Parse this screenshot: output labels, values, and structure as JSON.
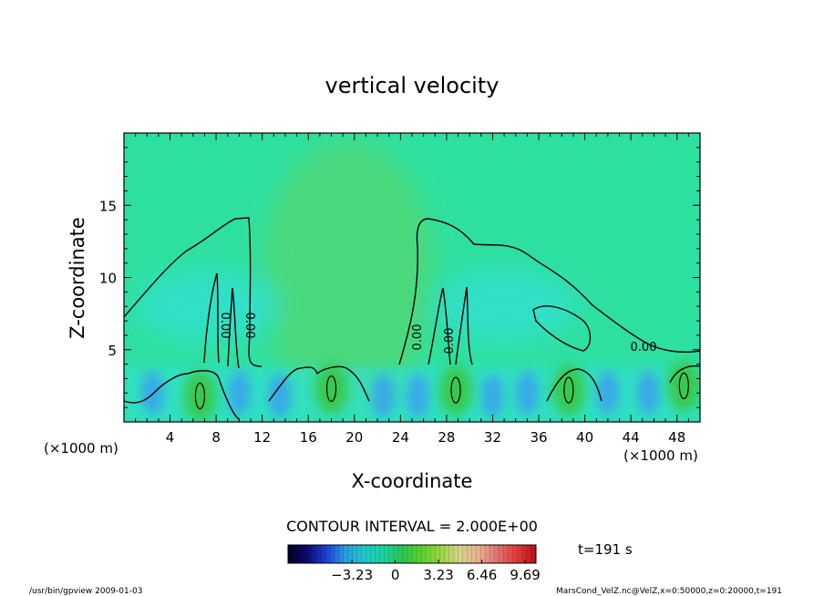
{
  "chart_data": {
    "type": "heatmap",
    "title": "vertical velocity",
    "xlabel": "X-coordinate",
    "ylabel": "Z-coordinate",
    "x_unit": "(×1000 m)",
    "xlim": [
      0,
      50
    ],
    "ylim": [
      0,
      20
    ],
    "x_ticks": [
      4,
      8,
      12,
      16,
      20,
      24,
      28,
      32,
      36,
      40,
      44,
      48
    ],
    "y_ticks": [
      5,
      10,
      15
    ],
    "contour_interval_text": "CONTOUR INTERVAL = 2.000E+00",
    "contour_labels": [
      "0.00",
      "0.00",
      "0.00",
      "0.00",
      "0.00"
    ],
    "time_label": "t=191 s",
    "colorbar": {
      "min": -8.0,
      "max": 10.5,
      "tick_labels": [
        "−3.23",
        "0",
        "3.23",
        "6.46",
        "9.69"
      ],
      "tick_values": [
        -3.23,
        0,
        3.23,
        6.46,
        9.69
      ],
      "colors": [
        "#000022",
        "#0a0a6e",
        "#1f3fd8",
        "#2a9de0",
        "#20c8c8",
        "#1ad4a0",
        "#28c850",
        "#5ccf30",
        "#9ad640",
        "#d4d48a",
        "#e8b090",
        "#e07070",
        "#e03a3a",
        "#b81414"
      ]
    },
    "updrafts": [
      {
        "x": 6.6,
        "z": 1.8,
        "w": 2.0
      },
      {
        "x": 18.0,
        "z": 2.3,
        "w": 2.0
      },
      {
        "x": 28.8,
        "z": 2.2,
        "w": 2.0
      },
      {
        "x": 38.6,
        "z": 2.2,
        "w": 2.0
      },
      {
        "x": 48.6,
        "z": 2.5,
        "w": 2.0
      }
    ],
    "downdrafts": [
      {
        "x": 2.5,
        "z": 2.0
      },
      {
        "x": 10.0,
        "z": 2.0
      },
      {
        "x": 13.5,
        "z": 1.8
      },
      {
        "x": 22.5,
        "z": 1.8
      },
      {
        "x": 25.5,
        "z": 1.8
      },
      {
        "x": 32.0,
        "z": 1.8
      },
      {
        "x": 35.0,
        "z": 2.0
      },
      {
        "x": 42.0,
        "z": 2.0
      },
      {
        "x": 45.5,
        "z": 2.0
      }
    ],
    "colors": {
      "background_field": "#2ee0a0",
      "updraft": "#38c848",
      "downdraft": "#3a9ff0",
      "weak_down": "#30e0d0",
      "contour": "#000000"
    }
  },
  "footer": {
    "left": "/usr/bin/gpview  2009-01-03",
    "right": "MarsCond_VelZ.nc@VelZ,x=0:50000,z=0:20000,t=191"
  }
}
